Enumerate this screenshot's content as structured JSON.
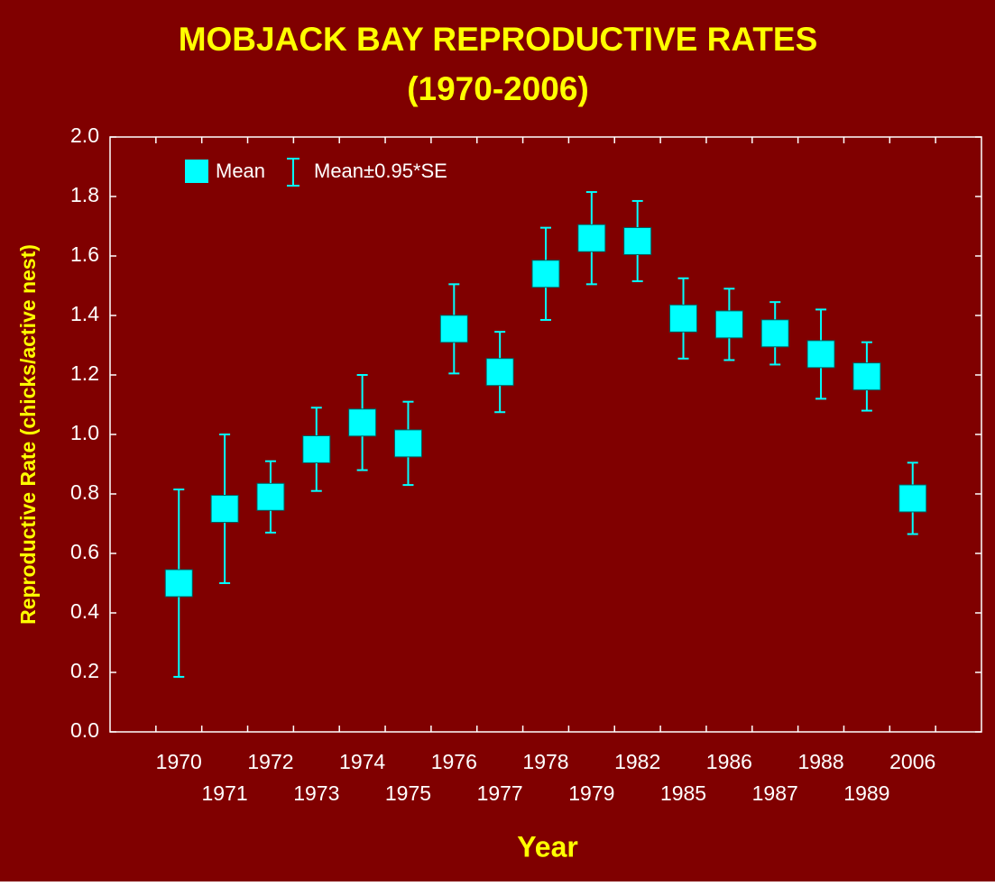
{
  "chart_data": {
    "type": "errorbar",
    "title": "MOBJACK BAY REPRODUCTIVE RATES",
    "subtitle": "(1970-2006)",
    "x_label": "Year",
    "y_label": "Reproductive Rate (chicks/active nest)",
    "categories": [
      "1970",
      "1971",
      "1972",
      "1973",
      "1974",
      "1975",
      "1976",
      "1977",
      "1978",
      "1979",
      "1982",
      "1985",
      "1986",
      "1987",
      "1988",
      "1989",
      "2006"
    ],
    "series": [
      {
        "name": "Mean",
        "error_name": "Mean±0.95*SE",
        "color": "#00ffff",
        "values": [
          0.5,
          0.75,
          0.79,
          0.95,
          1.04,
          0.97,
          1.355,
          1.21,
          1.54,
          1.66,
          1.65,
          1.39,
          1.37,
          1.34,
          1.27,
          1.195,
          0.785
        ],
        "errors": [
          0.315,
          0.25,
          0.12,
          0.14,
          0.16,
          0.14,
          0.15,
          0.135,
          0.155,
          0.155,
          0.135,
          0.135,
          0.12,
          0.105,
          0.15,
          0.115,
          0.12
        ]
      }
    ],
    "ylim": [
      0,
      2
    ],
    "yticks": [
      {
        "value": 0,
        "label": "0.0"
      },
      {
        "value": 0.2,
        "label": "0.2"
      },
      {
        "value": 0.4,
        "label": "0.4"
      },
      {
        "value": 0.6,
        "label": "0.6"
      },
      {
        "value": 0.8,
        "label": "0.8"
      },
      {
        "value": 1,
        "label": "1.0"
      },
      {
        "value": 1.2,
        "label": "1.2"
      },
      {
        "value": 1.4,
        "label": "1.4"
      },
      {
        "value": 1.6,
        "label": "1.6"
      },
      {
        "value": 1.8,
        "label": "1.8"
      },
      {
        "value": 2,
        "label": "2.0"
      }
    ],
    "legend": "top-left",
    "background": "#800000"
  }
}
